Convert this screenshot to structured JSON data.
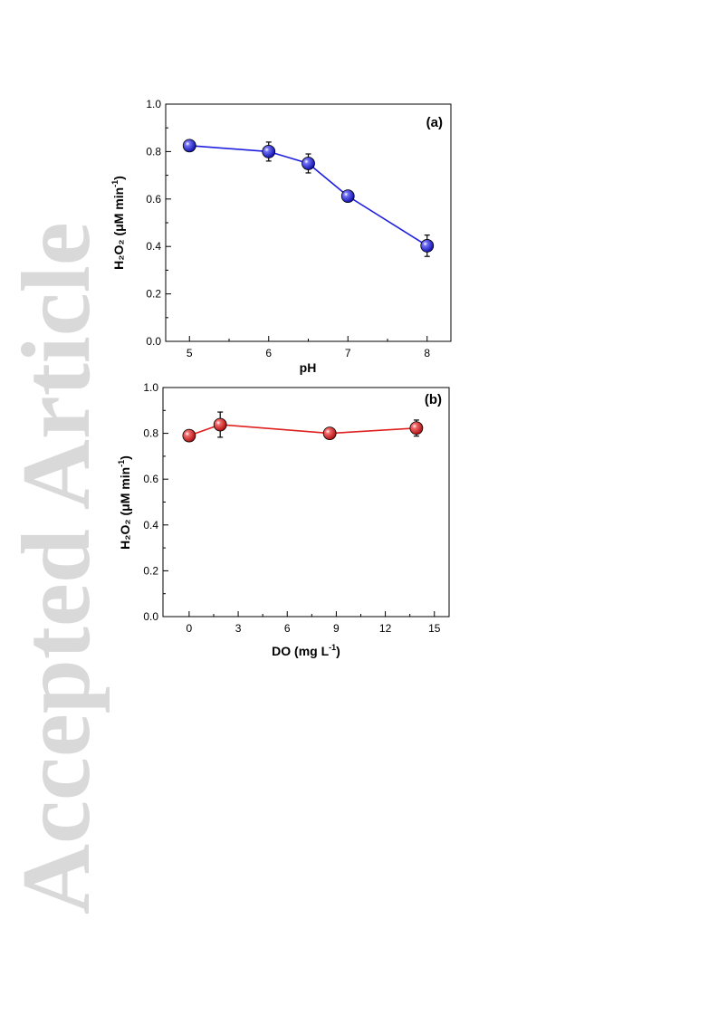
{
  "watermark": {
    "text": "Accepted Article",
    "color": "#d9d9d9"
  },
  "chart_data": [
    {
      "type": "line",
      "panel_label": "(a)",
      "xlabel": "pH",
      "ylabel_main": "H₂O₂ (μM min",
      "ylabel_sup": "-1",
      "ylabel_close": ")",
      "x": [
        5,
        6,
        6.5,
        7,
        8
      ],
      "series": [
        {
          "values": [
            0.825,
            0.8,
            0.75,
            0.612,
            0.403
          ],
          "errors": [
            0.012,
            0.04,
            0.04,
            0.015,
            0.045
          ],
          "color": "#1f1fe0"
        }
      ],
      "xlim": [
        4.7,
        8.3
      ],
      "ylim": [
        0.0,
        1.0
      ],
      "xticks": [
        "5",
        "6",
        "7",
        "8"
      ],
      "xtick_values": [
        5,
        6,
        7,
        8
      ],
      "yticks": [
        "0.0",
        "0.2",
        "0.4",
        "0.6",
        "0.8",
        "1.0"
      ],
      "ytick_values": [
        0.0,
        0.2,
        0.4,
        0.6,
        0.8,
        1.0
      ]
    },
    {
      "type": "line",
      "panel_label": "(b)",
      "xlabel_main": "DO (mg L",
      "xlabel_sup": "-1",
      "xlabel_close": ")",
      "ylabel_main": "H₂O₂ (μM min",
      "ylabel_sup": "-1",
      "ylabel_close": ")",
      "x": [
        0,
        1.9,
        8.6,
        13.9
      ],
      "series": [
        {
          "values": [
            0.79,
            0.838,
            0.8,
            0.823
          ],
          "errors": [
            0.02,
            0.055,
            0.02,
            0.035
          ],
          "color": "#e01f1f"
        }
      ],
      "xlim": [
        -1.6,
        15.9
      ],
      "ylim": [
        0.0,
        1.0
      ],
      "xticks": [
        "0",
        "3",
        "6",
        "9",
        "12",
        "15"
      ],
      "xtick_values": [
        0,
        3,
        6,
        9,
        12,
        15
      ],
      "yticks": [
        "0.0",
        "0.2",
        "0.4",
        "0.6",
        "0.8",
        "1.0"
      ],
      "ytick_values": [
        0.0,
        0.2,
        0.4,
        0.6,
        0.8,
        1.0
      ]
    }
  ]
}
